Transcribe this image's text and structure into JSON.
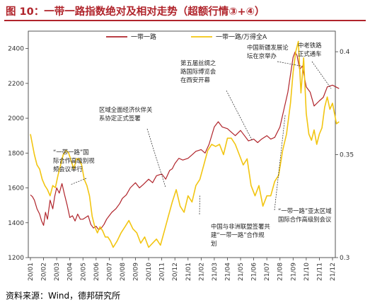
{
  "title": "图 10：一带一路指数绝对及相对走势（超额行情③+④）",
  "source": "资料来源：Wind，德邦研究所",
  "colors": {
    "title": "#b0242b",
    "series_abs": "#b0242b",
    "series_rel": "#f2c511"
  },
  "chart_data": {
    "type": "line",
    "title": "",
    "grid": false,
    "legend_position": "top",
    "x_ticks": [
      "20/01",
      "20/02",
      "20/03",
      "20/04",
      "20/05",
      "20/06",
      "20/07",
      "20/08",
      "20/09",
      "20/10",
      "20/11",
      "20/12",
      "21/01",
      "21/02",
      "21/03",
      "21/04",
      "21/05",
      "21/06",
      "21/07",
      "21/08",
      "21/09",
      "21/10",
      "21/11",
      "21/12"
    ],
    "y_left": {
      "min": 1200,
      "max": 2500,
      "ticks": [
        "1200",
        "1400",
        "1600",
        "1800",
        "2000",
        "2200",
        "2400"
      ]
    },
    "y_right": {
      "min": 0.3,
      "max": 0.41,
      "ticks": [
        "0.3",
        "0.35",
        "0.4"
      ]
    },
    "series": [
      {
        "name": "一带一路",
        "axis": "left",
        "color": "#b0242b",
        "x": [
          0,
          0.15,
          0.3,
          0.5,
          0.7,
          0.85,
          1.0,
          1.15,
          1.3,
          1.5,
          1.7,
          1.85,
          2.0,
          2.2,
          2.4,
          2.6,
          2.8,
          3.0,
          3.2,
          3.4,
          3.6,
          3.8,
          4.0,
          4.2,
          4.4,
          4.6,
          4.8,
          5.0,
          5.2,
          5.4,
          5.6,
          5.8,
          6.0,
          6.2,
          6.5,
          6.8,
          7.0,
          7.3,
          7.6,
          8.0,
          8.3,
          8.6,
          9.0,
          9.3,
          9.6,
          10.0,
          10.3,
          10.6,
          10.8,
          11.0,
          11.3,
          11.6,
          12.0,
          12.3,
          12.6,
          13.0,
          13.3,
          13.6,
          14.0,
          14.3,
          14.6,
          15.0,
          15.3,
          15.6,
          16.0,
          16.3,
          16.6,
          17.0,
          17.3,
          17.6,
          18.0,
          18.3,
          18.6,
          19.0,
          19.3,
          19.6,
          20.0,
          20.15,
          20.3,
          20.5,
          20.7,
          21.0,
          21.3,
          21.6,
          22.0,
          22.3,
          22.6,
          23.0,
          23.5
        ],
        "values": [
          1560,
          1550,
          1530,
          1480,
          1450,
          1410,
          1385,
          1460,
          1420,
          1530,
          1480,
          1550,
          1600,
          1570,
          1625,
          1560,
          1500,
          1430,
          1440,
          1410,
          1450,
          1420,
          1420,
          1430,
          1440,
          1390,
          1370,
          1380,
          1360,
          1370,
          1390,
          1420,
          1440,
          1460,
          1480,
          1510,
          1540,
          1560,
          1600,
          1630,
          1600,
          1620,
          1650,
          1630,
          1670,
          1680,
          1650,
          1700,
          1710,
          1740,
          1770,
          1760,
          1770,
          1790,
          1810,
          1820,
          1800,
          1850,
          1950,
          1980,
          1950,
          1940,
          1920,
          1900,
          1930,
          1900,
          1870,
          1880,
          1860,
          1880,
          1900,
          1880,
          1890,
          1950,
          2050,
          2150,
          2350,
          2380,
          2360,
          2280,
          2300,
          2180,
          2150,
          2070,
          2100,
          2120,
          2180,
          2190,
          2170
        ]
      },
      {
        "name": "一带一路/万得全A",
        "axis": "right",
        "color": "#f2c511",
        "x": [
          0,
          0.15,
          0.3,
          0.5,
          0.7,
          0.9,
          1.1,
          1.3,
          1.5,
          1.7,
          1.9,
          2.1,
          2.3,
          2.5,
          2.7,
          2.9,
          3.1,
          3.3,
          3.5,
          3.7,
          3.9,
          4.1,
          4.3,
          4.5,
          4.7,
          4.9,
          5.1,
          5.3,
          5.5,
          5.7,
          5.9,
          6.1,
          6.3,
          6.6,
          6.9,
          7.2,
          7.5,
          7.8,
          8.1,
          8.4,
          8.7,
          9.0,
          9.3,
          9.6,
          9.9,
          10.2,
          10.5,
          10.8,
          11.1,
          11.4,
          11.7,
          12.0,
          12.3,
          12.6,
          12.9,
          13.2,
          13.5,
          13.8,
          14.1,
          14.4,
          14.7,
          15.0,
          15.3,
          15.6,
          15.9,
          16.2,
          16.5,
          16.8,
          17.1,
          17.4,
          17.7,
          18.0,
          18.3,
          18.6,
          18.9,
          19.2,
          19.5,
          19.8,
          20.0,
          20.2,
          20.4,
          20.6,
          20.8,
          21.0,
          21.2,
          21.4,
          21.6,
          21.8,
          22.0,
          22.2,
          22.4,
          22.6,
          22.8,
          23.0,
          23.3,
          23.5
        ],
        "values": [
          0.36,
          0.355,
          0.35,
          0.345,
          0.343,
          0.338,
          0.335,
          0.333,
          0.33,
          0.335,
          0.334,
          0.34,
          0.345,
          0.35,
          0.352,
          0.351,
          0.347,
          0.343,
          0.348,
          0.348,
          0.345,
          0.338,
          0.335,
          0.33,
          0.32,
          0.315,
          0.312,
          0.315,
          0.313,
          0.31,
          0.31,
          0.308,
          0.305,
          0.308,
          0.312,
          0.315,
          0.318,
          0.314,
          0.312,
          0.307,
          0.31,
          0.305,
          0.307,
          0.309,
          0.306,
          0.313,
          0.32,
          0.327,
          0.333,
          0.325,
          0.322,
          0.33,
          0.327,
          0.335,
          0.338,
          0.345,
          0.352,
          0.355,
          0.354,
          0.355,
          0.35,
          0.358,
          0.358,
          0.355,
          0.35,
          0.345,
          0.348,
          0.335,
          0.33,
          0.335,
          0.325,
          0.33,
          0.33,
          0.337,
          0.34,
          0.352,
          0.36,
          0.375,
          0.39,
          0.4,
          0.405,
          0.38,
          0.397,
          0.37,
          0.36,
          0.357,
          0.362,
          0.355,
          0.36,
          0.363,
          0.373,
          0.378,
          0.372,
          0.375,
          0.365,
          0.366
        ]
      }
    ],
    "annotations": [
      {
        "id": "a1",
        "lines": [
          "“一带一路”国",
          "际合作高级别视",
          "频会议举行"
        ],
        "target_x": 3.1,
        "target_y_left": 1620
      },
      {
        "id": "a2",
        "lines": [
          "区域全面经济伙伴关",
          "系协定正式签署"
        ],
        "target_x": 10.3,
        "target_y_left": 1600
      },
      {
        "id": "a3",
        "lines": [
          "第五届丝绸之",
          "路国际博览会",
          "在西安开幕"
        ],
        "target_x": 16.9,
        "target_y_left": 1870
      },
      {
        "id": "a4",
        "lines": [
          "中国与非洲联盟签署共",
          "建“一带一路”合作规",
          "划"
        ],
        "target_x": 12.9,
        "target_y_left": 1560
      },
      {
        "id": "a5",
        "lines": [
          "中国新疆发展论",
          "坛在京举办"
        ],
        "target_x": 20.6,
        "target_y_left": 2300
      },
      {
        "id": "a6",
        "lines": [
          "中老铁路",
          "正式通车"
        ],
        "target_x": 22.9,
        "target_y_left": 2170
      },
      {
        "id": "a7",
        "lines": [
          "“一带一路”亚太区域",
          "国际合作高级别会议"
        ],
        "target_x": 19.4,
        "target_y_left": 2020
      }
    ]
  }
}
